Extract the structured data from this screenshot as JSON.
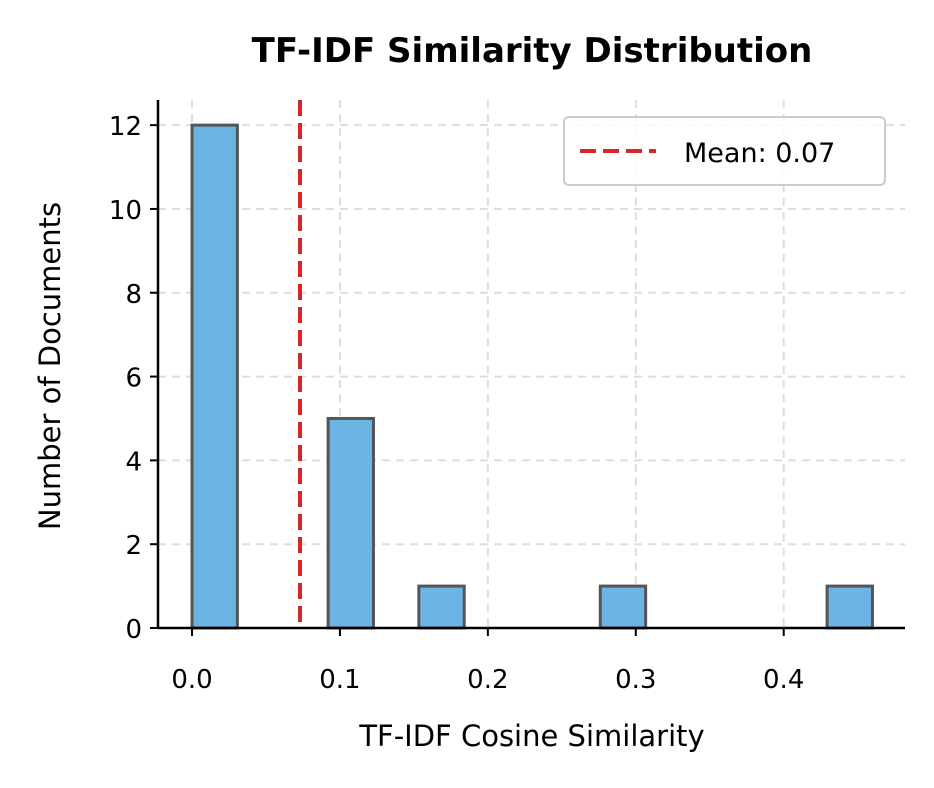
{
  "chart_data": {
    "type": "bar",
    "title": "TF-IDF Similarity Distribution",
    "xlabel": "TF-IDF Cosine Similarity",
    "ylabel": "Number of Documents",
    "xlim": [
      -0.023,
      0.482
    ],
    "ylim": [
      0,
      12.6
    ],
    "xticks": [
      "0.0",
      "0.1",
      "0.2",
      "0.3",
      "0.4"
    ],
    "xtick_values": [
      0,
      0.1,
      0.2,
      0.3,
      0.4
    ],
    "yticks": [
      "0",
      "2",
      "4",
      "6",
      "8",
      "10",
      "12"
    ],
    "ytick_values": [
      0,
      2,
      4,
      6,
      8,
      10,
      12
    ],
    "grid": true,
    "bin_edges_range": [
      0,
      0.46
    ],
    "bins": 15,
    "counts": [
      12,
      0,
      0,
      5,
      0,
      1,
      0,
      0,
      0,
      1,
      0,
      0,
      0,
      0,
      1
    ],
    "bar_color": "#6cb4e4",
    "bar_edge_color": "#555555",
    "mean": 0.073,
    "mean_color": "#d62728",
    "legend": {
      "placement": "top-right",
      "label": "Mean: 0.07"
    }
  }
}
